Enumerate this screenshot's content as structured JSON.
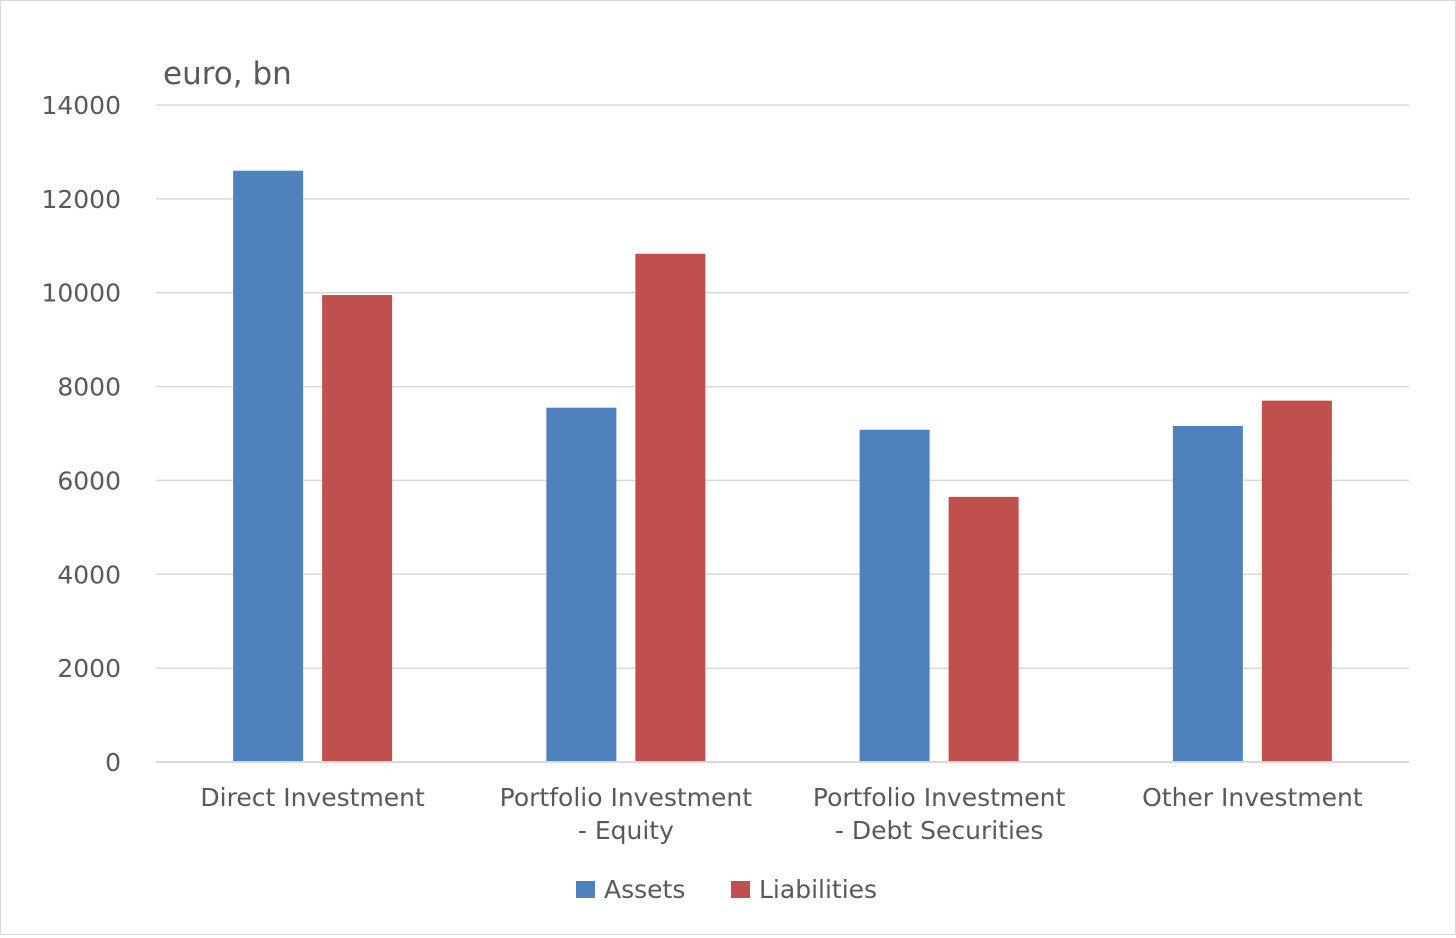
{
  "chart_data": {
    "type": "bar",
    "ylabel": "euro, bn",
    "categories": [
      [
        "Direct Investment"
      ],
      [
        "Portfolio Investment",
        "- Equity"
      ],
      [
        "Portfolio Investment",
        "- Debt Securities"
      ],
      [
        "Other Investment"
      ]
    ],
    "series": [
      {
        "name": "Assets",
        "color": "#4f81bd",
        "values": [
          12600,
          7550,
          7080,
          7160
        ]
      },
      {
        "name": "Liabilities",
        "color": "#c0504d",
        "values": [
          9950,
          10830,
          5650,
          7700
        ]
      }
    ],
    "ylim": [
      0,
      14000
    ],
    "yticks": [
      0,
      2000,
      4000,
      6000,
      8000,
      10000,
      12000,
      14000
    ],
    "grid": true,
    "gridColor": "#d9d9d9",
    "legend": "bottom-center"
  }
}
